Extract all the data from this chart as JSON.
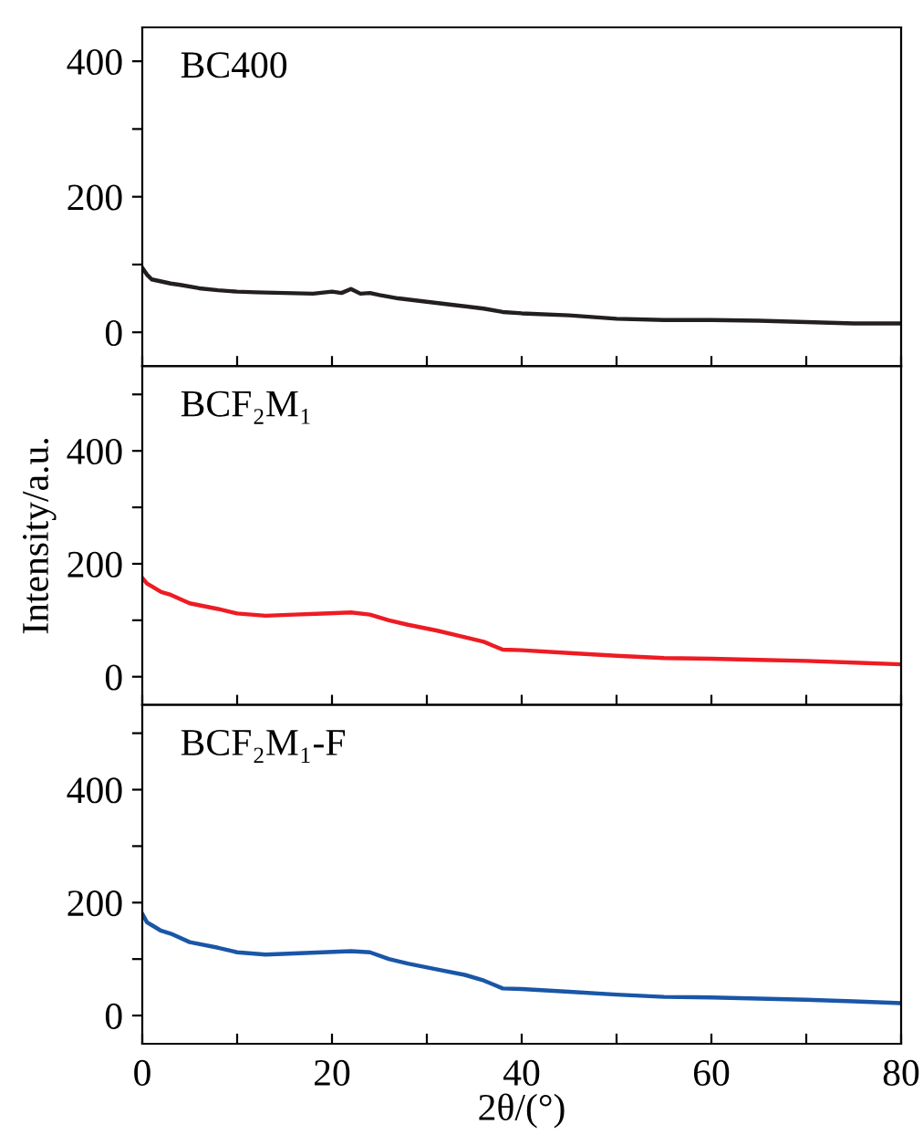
{
  "chart_data": [
    {
      "type": "line",
      "annotations": [
        "BC400"
      ],
      "xlim": [
        0,
        80
      ],
      "xticks": [
        {
          "value": 0,
          "label": null
        },
        {
          "value": 10,
          "label": null
        },
        {
          "value": 20,
          "label": null
        },
        {
          "value": 30,
          "label": null
        },
        {
          "value": 40,
          "label": null
        },
        {
          "value": 50,
          "label": null
        },
        {
          "value": 60,
          "label": null
        },
        {
          "value": 70,
          "label": null
        },
        {
          "value": 80,
          "label": null
        }
      ],
      "ylim": [
        -50,
        450
      ],
      "yticks": [
        0,
        {
          "value": 100,
          "label": null
        },
        200,
        {
          "value": 300,
          "label": null
        },
        400
      ],
      "tick_labels": "y",
      "grid": false,
      "legend": false,
      "series": [
        {
          "color": "#231f20",
          "x": [
            0,
            0.5,
            1,
            2,
            3,
            4,
            6,
            8,
            10,
            12,
            15,
            18,
            20,
            21,
            22,
            23,
            24,
            25,
            27,
            30,
            33,
            36,
            38,
            40,
            45,
            50,
            55,
            60,
            65,
            70,
            75,
            80
          ],
          "values": [
            95,
            85,
            78,
            75,
            72,
            70,
            65,
            62,
            60,
            59,
            58,
            57,
            60,
            58,
            64,
            57,
            58,
            55,
            50,
            45,
            40,
            35,
            30,
            28,
            25,
            20,
            18,
            18,
            17,
            15,
            13,
            13
          ]
        }
      ]
    },
    {
      "type": "line",
      "annotations": [
        "BCF₂M₁"
      ],
      "ylabel": "Intensity/a.u.",
      "xlim": [
        0,
        80
      ],
      "xticks": [
        {
          "value": 0,
          "label": null
        },
        {
          "value": 10,
          "label": null
        },
        {
          "value": 20,
          "label": null
        },
        {
          "value": 30,
          "label": null
        },
        {
          "value": 40,
          "label": null
        },
        {
          "value": 50,
          "label": null
        },
        {
          "value": 60,
          "label": null
        },
        {
          "value": 70,
          "label": null
        },
        {
          "value": 80,
          "label": null
        }
      ],
      "ylim": [
        -50,
        550
      ],
      "yticks": [
        0,
        {
          "value": 100,
          "label": null
        },
        200,
        {
          "value": 300,
          "label": null
        },
        400,
        {
          "value": 500,
          "label": null
        }
      ],
      "tick_labels": "y",
      "grid": false,
      "legend": false,
      "series": [
        {
          "color": "#ed1c24",
          "x": [
            0,
            0.5,
            1,
            2,
            3,
            5,
            8,
            10,
            13,
            16,
            19,
            22,
            24,
            26,
            28,
            31,
            34,
            36,
            37,
            38,
            40,
            45,
            50,
            55,
            60,
            65,
            70,
            75,
            80
          ],
          "values": [
            175,
            165,
            160,
            150,
            145,
            130,
            120,
            112,
            108,
            110,
            112,
            114,
            110,
            100,
            92,
            82,
            70,
            62,
            55,
            48,
            47,
            42,
            37,
            33,
            32,
            30,
            28,
            25,
            22
          ]
        }
      ]
    },
    {
      "type": "line",
      "annotations": [
        "BCF₂M₁-F"
      ],
      "xlabel": "2θ/(°)",
      "xlim": [
        0,
        80
      ],
      "xticks": [
        0,
        {
          "value": 10,
          "label": null
        },
        20,
        {
          "value": 30,
          "label": null
        },
        40,
        {
          "value": 50,
          "label": null
        },
        60,
        {
          "value": 70,
          "label": null
        },
        80
      ],
      "ylim": [
        -50,
        550
      ],
      "yticks": [
        0,
        {
          "value": 100,
          "label": null
        },
        200,
        {
          "value": 300,
          "label": null
        },
        400,
        {
          "value": 500,
          "label": null
        }
      ],
      "grid": false,
      "legend": false,
      "series": [
        {
          "color": "#1a56a8",
          "x": [
            0,
            0.5,
            1,
            2,
            3,
            5,
            8,
            10,
            13,
            16,
            19,
            22,
            24,
            26,
            28,
            31,
            34,
            36,
            37,
            38,
            40,
            45,
            50,
            55,
            60,
            65,
            70,
            75,
            80
          ],
          "values": [
            180,
            165,
            160,
            150,
            145,
            130,
            120,
            112,
            108,
            110,
            112,
            114,
            112,
            100,
            92,
            82,
            72,
            62,
            55,
            48,
            47,
            42,
            37,
            33,
            32,
            30,
            28,
            25,
            22
          ]
        }
      ]
    }
  ]
}
